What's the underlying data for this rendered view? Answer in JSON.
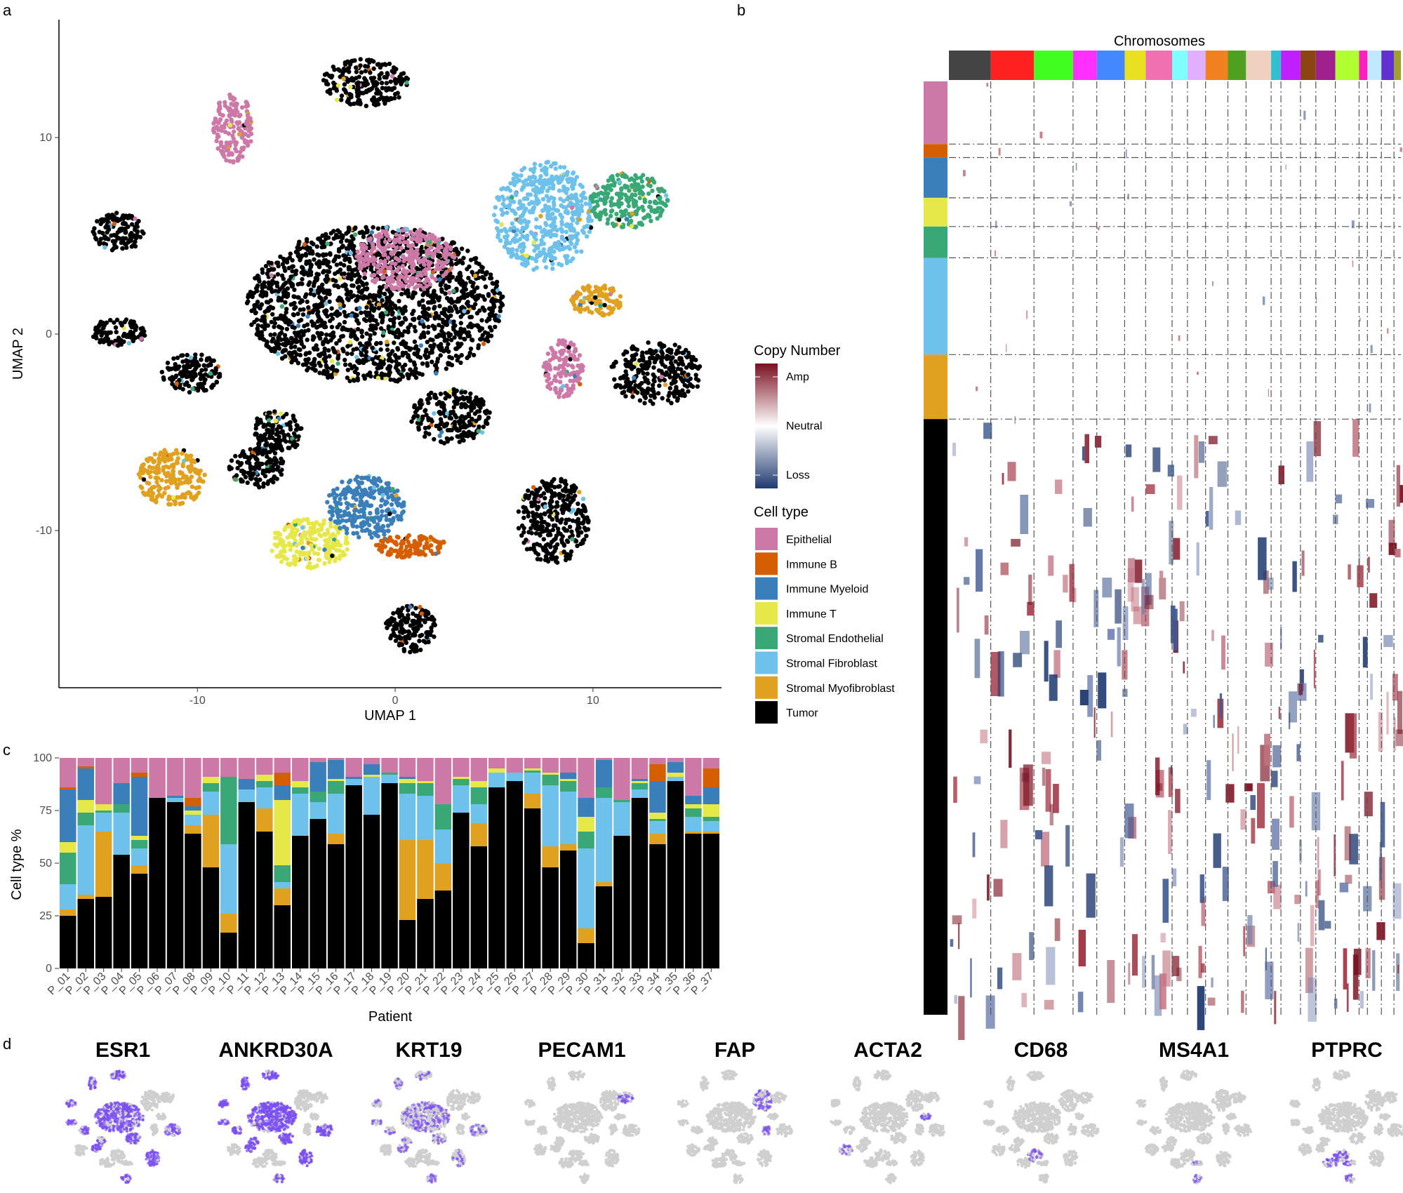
{
  "panels": {
    "a": "a",
    "b": "b",
    "c": "c",
    "d": "d"
  },
  "colors": {
    "Epithelial": "#cc79a7",
    "Immune B": "#d55e00",
    "Immune Myeloid": "#3b7fba",
    "Immune T": "#e6e84a",
    "Stromal Endothelial": "#3aa876",
    "Stromal Fibroblast": "#6ec1ea",
    "Stromal Myofibroblast": "#e0a020",
    "Tumor": "#000000"
  },
  "chart_data": [
    {
      "id": "umap",
      "type": "scatter",
      "xlabel": "UMAP 1",
      "ylabel": "UMAP 2",
      "xlim": [
        -17,
        16.5
      ],
      "ylim": [
        -18,
        16
      ],
      "xticks": [
        "-10",
        "0",
        "10"
      ],
      "yticks": [
        "10",
        "0",
        "-10"
      ],
      "clusters": [
        {
          "type": "Tumor",
          "cx": -14,
          "cy": 5.2,
          "rx": 1.3,
          "ry": 1.0
        },
        {
          "type": "Tumor",
          "cx": -14,
          "cy": 0.1,
          "rx": 1.4,
          "ry": 0.7
        },
        {
          "type": "Tumor",
          "cx": -10.3,
          "cy": -2.0,
          "rx": 1.5,
          "ry": 1.0
        },
        {
          "type": "Tumor",
          "cx": -6,
          "cy": -5,
          "rx": 1.3,
          "ry": 1.1
        },
        {
          "type": "Tumor",
          "cx": -7,
          "cy": -6.8,
          "rx": 1.4,
          "ry": 1.0
        },
        {
          "type": "Tumor",
          "cx": -1,
          "cy": 1.5,
          "rx": 6.5,
          "ry": 4.0
        },
        {
          "type": "Epithelial",
          "cx": 0.5,
          "cy": 3.8,
          "rx": 2.5,
          "ry": 1.6
        },
        {
          "type": "Epithelial",
          "cx": -8.2,
          "cy": 10.5,
          "rx": 1.0,
          "ry": 1.8
        },
        {
          "type": "Tumor",
          "cx": -1.5,
          "cy": 12.8,
          "rx": 2.2,
          "ry": 1.2
        },
        {
          "type": "Tumor",
          "cx": 2.8,
          "cy": -4.2,
          "rx": 2.0,
          "ry": 1.4
        },
        {
          "type": "Tumor",
          "cx": 13.2,
          "cy": -2,
          "rx": 2.3,
          "ry": 1.6
        },
        {
          "type": "Tumor",
          "cx": 8,
          "cy": -9.5,
          "rx": 1.8,
          "ry": 2.2
        },
        {
          "type": "Tumor",
          "cx": 0.8,
          "cy": -15,
          "rx": 1.3,
          "ry": 1.2
        },
        {
          "type": "Stromal Fibroblast",
          "cx": 7.5,
          "cy": 6,
          "rx": 2.5,
          "ry": 2.8
        },
        {
          "type": "Stromal Endothelial",
          "cx": 11.8,
          "cy": 6.8,
          "rx": 2.0,
          "ry": 1.4
        },
        {
          "type": "Stromal Myofibroblast",
          "cx": 10.2,
          "cy": 1.7,
          "rx": 1.3,
          "ry": 0.8
        },
        {
          "type": "Epithelial",
          "cx": 8.5,
          "cy": -1.8,
          "rx": 1.0,
          "ry": 1.5
        },
        {
          "type": "Stromal Myofibroblast",
          "cx": -11.3,
          "cy": -7.3,
          "rx": 1.7,
          "ry": 1.5
        },
        {
          "type": "Immune T",
          "cx": -4.3,
          "cy": -10.7,
          "rx": 2.0,
          "ry": 1.3
        },
        {
          "type": "Immune Myeloid",
          "cx": -1.5,
          "cy": -8.8,
          "rx": 2.0,
          "ry": 1.6
        },
        {
          "type": "Immune B",
          "cx": 0.8,
          "cy": -10.8,
          "rx": 1.8,
          "ry": 0.6
        }
      ]
    },
    {
      "id": "heatmap",
      "type": "heatmap",
      "title": "Chromosomes",
      "legend_copy_number": {
        "title": "Copy Number",
        "labels": [
          "Amp",
          "Neutral",
          "Loss"
        ],
        "colors": [
          "#7a1020",
          "#ffffff",
          "#203a70"
        ]
      },
      "legend_cell_type": {
        "title": "Cell type",
        "entries": [
          "Epithelial",
          "Immune B",
          "Immune Myeloid",
          "Immune T",
          "Stromal Endothelial",
          "Stromal Fibroblast",
          "Stromal Myofibroblast",
          "Tumor"
        ]
      },
      "chromosome_colors": [
        "#444444",
        "#ff2020",
        "#40ff20",
        "#ff30ff",
        "#4488ff",
        "#e8e020",
        "#f070b0",
        "#80ffff",
        "#e0b0ff",
        "#f08020",
        "#50a020",
        "#f0d0c0",
        "#30c0d0",
        "#c020ff",
        "#8b4513",
        "#a02090",
        "#b0ff30",
        "#ff20c0",
        "#c0e8ff",
        "#6030d0",
        "#a0a030"
      ],
      "row_groups": [
        {
          "type": "Epithelial",
          "weight": 70
        },
        {
          "type": "Immune B",
          "weight": 15
        },
        {
          "type": "Immune Myeloid",
          "weight": 45
        },
        {
          "type": "Immune T",
          "weight": 32
        },
        {
          "type": "Stromal Endothelial",
          "weight": 35
        },
        {
          "type": "Stromal Fibroblast",
          "weight": 108
        },
        {
          "type": "Stromal Myofibroblast",
          "weight": 72
        },
        {
          "type": "Tumor",
          "weight": 665
        }
      ]
    },
    {
      "id": "composition",
      "type": "bar",
      "stacked": true,
      "xlabel": "Patient",
      "ylabel": "Cell type %",
      "ylim": [
        0,
        100
      ],
      "yticks": [
        "0",
        "25",
        "50",
        "75",
        "100"
      ],
      "categories": [
        "P_01",
        "P_02",
        "P_03",
        "P_04",
        "P_05",
        "P_06",
        "P_07",
        "P_08",
        "P_09",
        "P_10",
        "P_11",
        "P_12",
        "P_13",
        "P_14",
        "P_15",
        "P_16",
        "P_17",
        "P_18",
        "P_19",
        "P_20",
        "P_21",
        "P_22",
        "P_23",
        "P_24",
        "P_25",
        "P_26",
        "P_27",
        "P_28",
        "P_29",
        "P_30",
        "P_31",
        "P_32",
        "P_33",
        "P_34",
        "P_35",
        "P_36",
        "P_37"
      ],
      "series": [
        {
          "name": "Tumor",
          "values": [
            25,
            33,
            34,
            54,
            45,
            81,
            79,
            64,
            48,
            17,
            79,
            65,
            30,
            63,
            71,
            59,
            87,
            73,
            88,
            23,
            33,
            37,
            74,
            58,
            86,
            89,
            76,
            48,
            56,
            12,
            39,
            63,
            81,
            59,
            89,
            64,
            64
          ]
        },
        {
          "name": "Stromal Myofibroblast",
          "values": [
            3,
            2,
            31,
            0,
            4,
            0,
            0,
            4,
            25,
            9,
            0,
            11,
            8,
            0,
            0,
            5,
            0,
            0,
            0,
            38,
            28,
            13,
            0,
            11,
            0,
            0,
            7,
            10,
            3,
            7,
            2,
            0,
            0,
            5,
            0,
            1,
            1
          ]
        },
        {
          "name": "Stromal Fibroblast",
          "values": [
            12,
            33,
            9,
            20,
            8,
            0,
            2,
            5,
            11,
            33,
            6,
            10,
            3,
            20,
            8,
            19,
            3,
            18,
            4,
            22,
            21,
            16,
            13,
            9,
            7,
            4,
            10,
            29,
            25,
            38,
            40,
            16,
            4,
            6,
            2,
            7,
            5
          ]
        },
        {
          "name": "Stromal Endothelial",
          "values": [
            15,
            6,
            1,
            4,
            4,
            0,
            0,
            0,
            4,
            32,
            0,
            3,
            8,
            3,
            5,
            6,
            0,
            0,
            1,
            5,
            6,
            12,
            3,
            8,
            0,
            0,
            1,
            5,
            5,
            8,
            5,
            1,
            3,
            1,
            0,
            4,
            2
          ]
        },
        {
          "name": "Immune T",
          "values": [
            5,
            6,
            3,
            0,
            2,
            0,
            0,
            2,
            3,
            0,
            0,
            3,
            31,
            3,
            0,
            1,
            0,
            1,
            0,
            2,
            1,
            0,
            1,
            3,
            2,
            0,
            1,
            1,
            1,
            7,
            0,
            0,
            1,
            3,
            2,
            2,
            6
          ]
        },
        {
          "name": "Immune Myeloid",
          "values": [
            25,
            15,
            0,
            10,
            28,
            0,
            1,
            2,
            0,
            0,
            5,
            0,
            7,
            0,
            14,
            9,
            1,
            5,
            0,
            1,
            0,
            0,
            0,
            0,
            0,
            0,
            0,
            0,
            3,
            9,
            13,
            0,
            1,
            15,
            5,
            4,
            8
          ]
        },
        {
          "name": "Immune B",
          "values": [
            1,
            1,
            0,
            0,
            2,
            0,
            0,
            4,
            0,
            0,
            0,
            0,
            6,
            0,
            0,
            0,
            0,
            0,
            0,
            0,
            0,
            0,
            0,
            0,
            0,
            0,
            0,
            0,
            0,
            0,
            0,
            0,
            0,
            8,
            0,
            0,
            9
          ]
        },
        {
          "name": "Epithelial",
          "values": [
            14,
            4,
            22,
            12,
            7,
            19,
            18,
            19,
            9,
            9,
            10,
            8,
            7,
            11,
            2,
            1,
            9,
            3,
            7,
            9,
            11,
            22,
            9,
            11,
            5,
            7,
            5,
            7,
            7,
            19,
            1,
            20,
            10,
            3,
            2,
            18,
            5
          ]
        }
      ]
    },
    {
      "id": "markers",
      "type": "scatter",
      "genes": [
        {
          "name": "ESR1",
          "intensity": 0.9,
          "focus": "broad"
        },
        {
          "name": "ANKRD30A",
          "intensity": 1.0,
          "focus": "broad"
        },
        {
          "name": "KRT19",
          "intensity": 0.55,
          "focus": "broad"
        },
        {
          "name": "PECAM1",
          "intensity": 0.7,
          "focus": "endothelial"
        },
        {
          "name": "FAP",
          "intensity": 0.6,
          "focus": "fibroblast"
        },
        {
          "name": "ACTA2",
          "intensity": 0.7,
          "focus": "myofibroblast"
        },
        {
          "name": "CD68",
          "intensity": 0.5,
          "focus": "myeloid"
        },
        {
          "name": "MS4A1",
          "intensity": 0.6,
          "focus": "bcell"
        },
        {
          "name": "PTPRC",
          "intensity": 0.7,
          "focus": "immune"
        }
      ]
    }
  ]
}
